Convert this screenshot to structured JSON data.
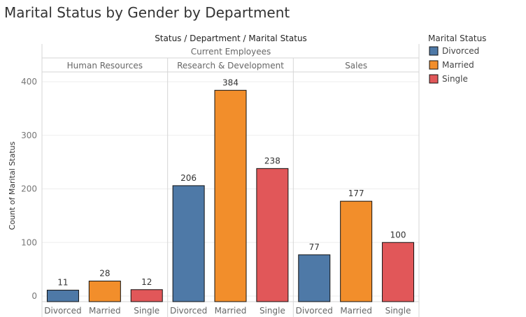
{
  "chart_data": {
    "type": "bar",
    "title": "Marital Status by Gender by Department",
    "column_header": "Status / Department / Marital Status",
    "status": "Current Employees",
    "ylabel": "Count of Marital Status",
    "ylim": [
      0,
      430
    ],
    "yticks": [
      0,
      100,
      200,
      300,
      400
    ],
    "departments": [
      {
        "name": "Human Resources",
        "categories": [
          "Divorced",
          "Married",
          "Single"
        ],
        "values": [
          11,
          28,
          12
        ]
      },
      {
        "name": "Research & Development",
        "categories": [
          "Divorced",
          "Married",
          "Single"
        ],
        "values": [
          206,
          384,
          238
        ]
      },
      {
        "name": "Sales",
        "categories": [
          "Divorced",
          "Married",
          "Single"
        ],
        "values": [
          77,
          177,
          100
        ]
      }
    ],
    "legend": {
      "title": "Marital Status",
      "placement": "right",
      "items": [
        {
          "label": "Divorced",
          "color": "#4e79a7"
        },
        {
          "label": "Married",
          "color": "#f28e2b"
        },
        {
          "label": "Single",
          "color": "#e15759"
        }
      ]
    },
    "grid": true
  }
}
